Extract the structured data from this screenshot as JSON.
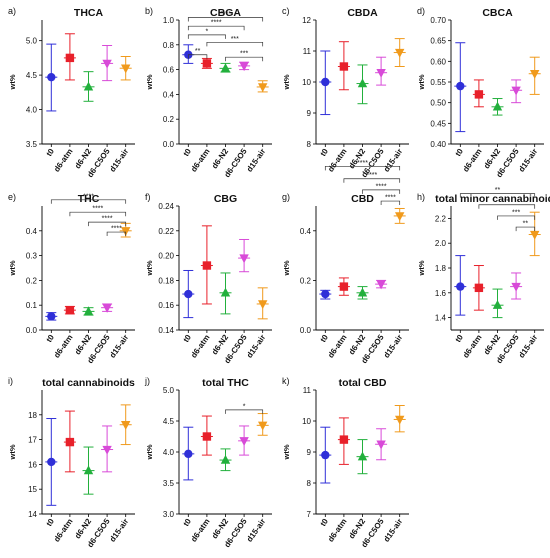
{
  "categories": [
    "t0",
    "d6-atm",
    "d6-N2",
    "d6-C5O5",
    "d15-air"
  ],
  "colors": [
    "#2f2fd8",
    "#e8202a",
    "#22b03c",
    "#d84ad8",
    "#f09a1c"
  ],
  "markers": [
    "circle",
    "square",
    "triangle-up",
    "triangle-down",
    "triangle-down"
  ],
  "ylabel": "wt%",
  "chart_data": [
    {
      "type": "scatter",
      "panel": "a)",
      "title": "THCA",
      "ylim": [
        3.5,
        5.3
      ],
      "yticks": [
        3.5,
        4.0,
        4.5,
        5.0
      ],
      "ytick_labels": [
        "3.5",
        "4.0",
        "4.5",
        "5.0"
      ],
      "values": [
        4.47,
        4.75,
        4.33,
        4.67,
        4.6
      ],
      "err_low": [
        3.98,
        4.43,
        4.12,
        4.42,
        4.43
      ],
      "err_high": [
        4.95,
        5.1,
        4.55,
        4.93,
        4.77
      ],
      "brackets": []
    },
    {
      "type": "scatter",
      "panel": "b)",
      "title": "CBGA",
      "ylim": [
        0.0,
        1.0
      ],
      "yticks": [
        0.0,
        0.2,
        0.4,
        0.6,
        0.8,
        1.0
      ],
      "ytick_labels": [
        "0.0",
        "0.2",
        "0.4",
        "0.6",
        "0.8",
        "1.0"
      ],
      "values": [
        0.72,
        0.65,
        0.61,
        0.63,
        0.46
      ],
      "err_low": [
        0.65,
        0.61,
        0.58,
        0.6,
        0.42
      ],
      "err_high": [
        0.8,
        0.69,
        0.65,
        0.66,
        0.51
      ],
      "brackets": [
        {
          "from": 0,
          "to": 4,
          "label": "****",
          "y": 1.02
        },
        {
          "from": 0,
          "to": 3,
          "label": "****",
          "y": 0.95
        },
        {
          "from": 0,
          "to": 2,
          "label": "*",
          "y": 0.88
        },
        {
          "from": 0,
          "to": 1,
          "label": "**",
          "y": 0.72
        },
        {
          "from": 1,
          "to": 4,
          "label": "***",
          "y": 0.82
        },
        {
          "from": 2,
          "to": 4,
          "label": "***",
          "y": 0.7
        }
      ]
    },
    {
      "type": "scatter",
      "panel": "c)",
      "title": "CBDA",
      "ylim": [
        8.0,
        12.0
      ],
      "yticks": [
        8,
        9,
        10,
        11,
        12
      ],
      "ytick_labels": [
        "8",
        "9",
        "10",
        "11",
        "12"
      ],
      "values": [
        10.0,
        10.5,
        9.95,
        10.3,
        10.95
      ],
      "err_low": [
        8.95,
        9.75,
        9.3,
        9.9,
        10.5
      ],
      "err_high": [
        11.0,
        11.3,
        10.55,
        10.8,
        11.4
      ],
      "brackets": []
    },
    {
      "type": "scatter",
      "panel": "d)",
      "title": "CBCA",
      "ylim": [
        0.4,
        0.7
      ],
      "yticks": [
        0.4,
        0.45,
        0.5,
        0.55,
        0.6,
        0.65,
        0.7
      ],
      "ytick_labels": [
        "0.40",
        "0.45",
        "0.50",
        "0.55",
        "0.60",
        "0.65",
        "0.70"
      ],
      "values": [
        0.54,
        0.52,
        0.49,
        0.53,
        0.57
      ],
      "err_low": [
        0.43,
        0.49,
        0.47,
        0.5,
        0.52
      ],
      "err_high": [
        0.645,
        0.555,
        0.51,
        0.555,
        0.61
      ],
      "brackets": []
    },
    {
      "type": "scatter",
      "panel": "e)",
      "title": "THC",
      "ylim": [
        0.0,
        0.5
      ],
      "yticks": [
        0.0,
        0.1,
        0.2,
        0.3,
        0.4
      ],
      "ytick_labels": [
        "0.0",
        "0.1",
        "0.2",
        "0.3",
        "0.4"
      ],
      "values": [
        0.055,
        0.08,
        0.075,
        0.09,
        0.4
      ],
      "err_low": [
        0.04,
        0.065,
        0.06,
        0.075,
        0.375
      ],
      "err_high": [
        0.07,
        0.095,
        0.09,
        0.105,
        0.43
      ],
      "brackets": [
        {
          "from": 0,
          "to": 4,
          "label": "****",
          "y": 0.525
        },
        {
          "from": 1,
          "to": 4,
          "label": "****",
          "y": 0.475
        },
        {
          "from": 2,
          "to": 4,
          "label": "****",
          "y": 0.435
        },
        {
          "from": 3,
          "to": 4,
          "label": "****",
          "y": 0.395
        }
      ]
    },
    {
      "type": "scatter",
      "panel": "f)",
      "title": "CBG",
      "ylim": [
        0.14,
        0.24
      ],
      "yticks": [
        0.14,
        0.16,
        0.18,
        0.2,
        0.22,
        0.24
      ],
      "ytick_labels": [
        "0.14",
        "0.16",
        "0.18",
        "0.20",
        "0.22",
        "0.24"
      ],
      "values": [
        0.169,
        0.192,
        0.17,
        0.198,
        0.161
      ],
      "err_low": [
        0.15,
        0.161,
        0.153,
        0.187,
        0.149
      ],
      "err_high": [
        0.188,
        0.224,
        0.186,
        0.213,
        0.174
      ],
      "brackets": []
    },
    {
      "type": "scatter",
      "panel": "g)",
      "title": "CBD",
      "ylim": [
        0.0,
        0.5
      ],
      "yticks": [
        0.0,
        0.2,
        0.4
      ],
      "ytick_labels": [
        "0.0",
        "0.2",
        "0.4"
      ],
      "values": [
        0.145,
        0.175,
        0.15,
        0.185,
        0.46
      ],
      "err_low": [
        0.125,
        0.14,
        0.125,
        0.17,
        0.43
      ],
      "err_high": [
        0.16,
        0.21,
        0.175,
        0.2,
        0.49
      ],
      "brackets": [
        {
          "from": 0,
          "to": 4,
          "label": "****",
          "y": 0.66
        },
        {
          "from": 1,
          "to": 4,
          "label": "****",
          "y": 0.61
        },
        {
          "from": 2,
          "to": 4,
          "label": "****",
          "y": 0.565
        },
        {
          "from": 3,
          "to": 4,
          "label": "****",
          "y": 0.52
        }
      ]
    },
    {
      "type": "scatter",
      "panel": "h)",
      "title": "total minor cannabinoids",
      "ylim": [
        1.3,
        2.3
      ],
      "yticks": [
        1.4,
        1.6,
        1.8,
        2.0,
        2.2
      ],
      "ytick_labels": [
        "1.4",
        "1.6",
        "1.8",
        "2.0",
        "2.2"
      ],
      "values": [
        1.65,
        1.64,
        1.5,
        1.65,
        2.07
      ],
      "err_low": [
        1.42,
        1.46,
        1.4,
        1.55,
        1.9
      ],
      "err_high": [
        1.9,
        1.82,
        1.63,
        1.76,
        2.25
      ],
      "brackets": [
        {
          "from": 0,
          "to": 4,
          "label": "**",
          "y": 2.4
        },
        {
          "from": 1,
          "to": 4,
          "label": "**",
          "y": 2.31
        },
        {
          "from": 2,
          "to": 4,
          "label": "***",
          "y": 2.22
        },
        {
          "from": 3,
          "to": 4,
          "label": "**",
          "y": 2.13
        }
      ]
    },
    {
      "type": "scatter",
      "panel": "i)",
      "title": "total cannabinoids",
      "ylim": [
        14.0,
        19.0
      ],
      "yticks": [
        14,
        15,
        16,
        17,
        18
      ],
      "ytick_labels": [
        "14",
        "15",
        "16",
        "17",
        "18"
      ],
      "values": [
        16.1,
        16.9,
        15.75,
        16.6,
        17.6
      ],
      "err_low": [
        14.35,
        15.7,
        14.8,
        15.7,
        16.8
      ],
      "err_high": [
        17.85,
        18.15,
        16.7,
        17.55,
        18.4
      ],
      "brackets": []
    },
    {
      "type": "scatter",
      "panel": "j)",
      "title": "total THC",
      "ylim": [
        3.0,
        5.0
      ],
      "yticks": [
        3.0,
        3.5,
        4.0,
        4.5,
        5.0
      ],
      "ytick_labels": [
        "3.0",
        "3.5",
        "4.0",
        "4.5",
        "5.0"
      ],
      "values": [
        3.97,
        4.25,
        3.87,
        4.18,
        4.43
      ],
      "err_low": [
        3.55,
        3.95,
        3.7,
        3.95,
        4.27
      ],
      "err_high": [
        4.4,
        4.58,
        4.05,
        4.42,
        4.62
      ],
      "brackets": [
        {
          "from": 2,
          "to": 4,
          "label": "*",
          "y": 4.68
        }
      ]
    },
    {
      "type": "scatter",
      "panel": "k)",
      "title": "total CBD",
      "ylim": [
        7.0,
        11.0
      ],
      "yticks": [
        7,
        8,
        9,
        10,
        11
      ],
      "ytick_labels": [
        "7",
        "8",
        "9",
        "10",
        "11"
      ],
      "values": [
        8.9,
        9.4,
        8.85,
        9.25,
        10.05
      ],
      "err_low": [
        8.0,
        8.6,
        8.3,
        8.75,
        9.65
      ],
      "err_high": [
        9.8,
        10.1,
        9.4,
        9.75,
        10.5
      ],
      "brackets": []
    }
  ]
}
